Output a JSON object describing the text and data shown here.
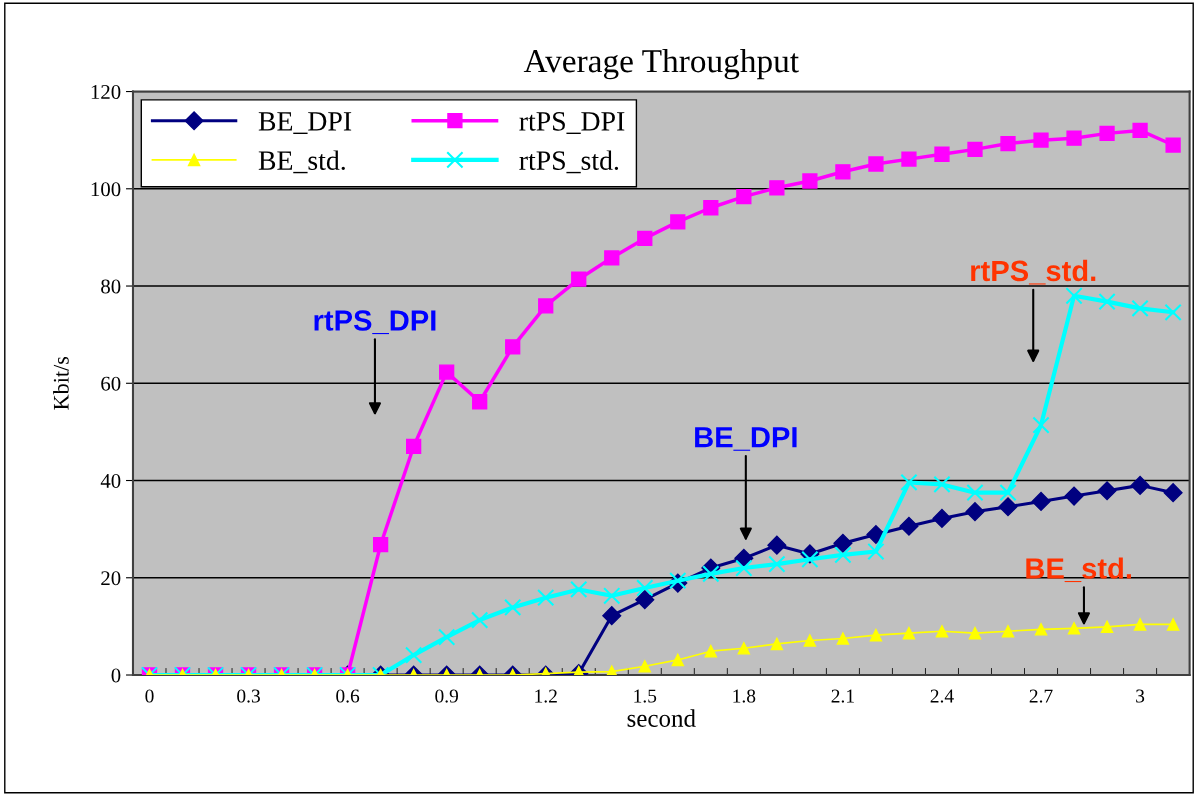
{
  "chart_data": {
    "type": "line",
    "title": "Average Throughput",
    "xlabel": "second",
    "ylabel": "Kbit/s",
    "categories": [
      "0",
      null,
      null,
      "0.3",
      null,
      null,
      "0.6",
      null,
      null,
      "0.9",
      null,
      null,
      "1.2",
      null,
      null,
      "1.5",
      null,
      null,
      "1.8",
      null,
      null,
      "2.1",
      null,
      null,
      "2.4",
      null,
      null,
      "2.7",
      null,
      null,
      "3",
      null
    ],
    "series": [
      {
        "name": "BE_DPI",
        "color": "#000080",
        "marker": "diamond",
        "values": [
          null,
          null,
          null,
          null,
          null,
          null,
          0,
          0,
          0,
          0,
          0,
          0,
          0,
          0.3,
          12.2,
          15.5,
          18.9,
          22,
          24,
          26.7,
          24.9,
          27.1,
          28.9,
          30.6,
          32.2,
          33.6,
          34.6,
          35.7,
          36.8,
          37.9,
          39,
          37.5
        ]
      },
      {
        "name": "rtPS_DPI",
        "color": "#ff00ff",
        "marker": "square",
        "values": [
          0,
          0,
          0,
          0,
          0,
          0,
          0,
          26.8,
          47,
          62.3,
          56.2,
          67.5,
          75.9,
          81.4,
          85.8,
          89.8,
          93.2,
          96.1,
          98.4,
          100.2,
          101.6,
          103.5,
          105.1,
          106.1,
          107.1,
          108.1,
          109.3,
          110,
          110.4,
          111.4,
          112,
          109
        ]
      },
      {
        "name": "BE_std.",
        "color": "#ffff00",
        "marker": "triangle",
        "values": [
          0,
          0,
          0,
          0,
          0,
          0,
          0,
          0,
          0,
          0,
          0,
          0,
          0.3,
          0.6,
          0.7,
          1.8,
          3.1,
          4.9,
          5.5,
          6.4,
          7.1,
          7.5,
          8.2,
          8.6,
          9,
          8.6,
          9,
          9.4,
          9.6,
          9.9,
          10.4,
          10.4
        ]
      },
      {
        "name": "rtPS_std.",
        "color": "#00ffff",
        "marker": "cross",
        "values": [
          0,
          0,
          0,
          0,
          0,
          0,
          0,
          0,
          4.1,
          7.8,
          11.3,
          13.9,
          15.9,
          17.6,
          16.3,
          17.9,
          19.4,
          20.8,
          22,
          22.8,
          23.8,
          24.7,
          25.4,
          39.6,
          39.2,
          37.5,
          37.5,
          51.4,
          78,
          76.8,
          75.4,
          74.6
        ]
      }
    ],
    "ylim": [
      0,
      120
    ],
    "yticks": [
      0,
      20,
      40,
      60,
      80,
      100,
      120
    ],
    "grid": "y",
    "legend": "top left",
    "annotations": [
      "rtPS_DPI",
      "BE_DPI",
      "rtPS_std.",
      "BE_std."
    ]
  }
}
